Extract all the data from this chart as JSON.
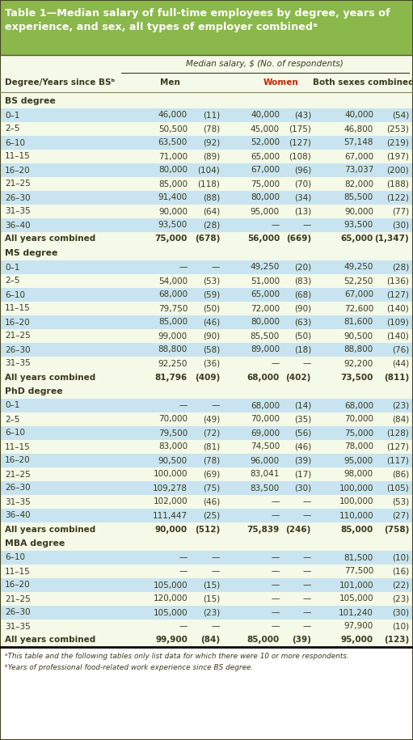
{
  "title_line1": "Table 1—Median salary of full-time employees by degree, years of",
  "title_line2": "experience, and sex, all types of employer combinedᵃ",
  "header_bg": "#8ab84a",
  "light_yellow": "#f5f9e8",
  "light_blue": "#c8e4f0",
  "dark_text": "#3a3a1e",
  "red_text": "#cc2200",
  "footnote_a": "ᵃThis table and the following tables only list data for which there were 10 or more respondents.",
  "footnote_b": "ᵇYears of professional food-related work experience since BS degree.",
  "sections": [
    {
      "name": "BS degree",
      "rows": [
        {
          "label": "0–1",
          "men_sal": "46,000",
          "men_n": "(11)",
          "wom_sal": "40,000",
          "wom_n": "(43)",
          "both_sal": "40,000",
          "both_n": "(54)",
          "bold": false
        },
        {
          "label": "2–5",
          "men_sal": "50,500",
          "men_n": "(78)",
          "wom_sal": "45,000",
          "wom_n": "(175)",
          "both_sal": "46,800",
          "both_n": "(253)",
          "bold": false
        },
        {
          "label": "6–10",
          "men_sal": "63,500",
          "men_n": "(92)",
          "wom_sal": "52,000",
          "wom_n": "(127)",
          "both_sal": "57,148",
          "both_n": "(219)",
          "bold": false
        },
        {
          "label": "11–15",
          "men_sal": "71,000",
          "men_n": "(89)",
          "wom_sal": "65,000",
          "wom_n": "(108)",
          "both_sal": "67,000",
          "both_n": "(197)",
          "bold": false
        },
        {
          "label": "16–20",
          "men_sal": "80,000",
          "men_n": "(104)",
          "wom_sal": "67,000",
          "wom_n": "(96)",
          "both_sal": "73,037",
          "both_n": "(200)",
          "bold": false
        },
        {
          "label": "21–25",
          "men_sal": "85,000",
          "men_n": "(118)",
          "wom_sal": "75,000",
          "wom_n": "(70)",
          "both_sal": "82,000",
          "both_n": "(188)",
          "bold": false
        },
        {
          "label": "26–30",
          "men_sal": "91,400",
          "men_n": "(88)",
          "wom_sal": "80,000",
          "wom_n": "(34)",
          "both_sal": "85,500",
          "both_n": "(122)",
          "bold": false
        },
        {
          "label": "31–35",
          "men_sal": "90,000",
          "men_n": "(64)",
          "wom_sal": "95,000",
          "wom_n": "(13)",
          "both_sal": "90,000",
          "both_n": "(77)",
          "bold": false
        },
        {
          "label": "36–40",
          "men_sal": "93,500",
          "men_n": "(28)",
          "wom_sal": "—",
          "wom_n": "—",
          "both_sal": "93,500",
          "both_n": "(30)",
          "bold": false
        },
        {
          "label": "All years combined",
          "men_sal": "75,000",
          "men_n": "(678)",
          "wom_sal": "56,000",
          "wom_n": "(669)",
          "both_sal": "65,000",
          "both_n": "(1,347)",
          "bold": true
        }
      ]
    },
    {
      "name": "MS degree",
      "rows": [
        {
          "label": "0–1",
          "men_sal": "—",
          "men_n": "—",
          "wom_sal": "49,250",
          "wom_n": "(20)",
          "both_sal": "49,250",
          "both_n": "(28)",
          "bold": false
        },
        {
          "label": "2–5",
          "men_sal": "54,000",
          "men_n": "(53)",
          "wom_sal": "51,000",
          "wom_n": "(83)",
          "both_sal": "52,250",
          "both_n": "(136)",
          "bold": false
        },
        {
          "label": "6–10",
          "men_sal": "68,000",
          "men_n": "(59)",
          "wom_sal": "65,000",
          "wom_n": "(68)",
          "both_sal": "67,000",
          "both_n": "(127)",
          "bold": false
        },
        {
          "label": "11–15",
          "men_sal": "79,750",
          "men_n": "(50)",
          "wom_sal": "72,000",
          "wom_n": "(90)",
          "both_sal": "72,600",
          "both_n": "(140)",
          "bold": false
        },
        {
          "label": "16–20",
          "men_sal": "85,000",
          "men_n": "(46)",
          "wom_sal": "80,000",
          "wom_n": "(63)",
          "both_sal": "81,600",
          "both_n": "(109)",
          "bold": false
        },
        {
          "label": "21–25",
          "men_sal": "99,000",
          "men_n": "(90)",
          "wom_sal": "85,500",
          "wom_n": "(50)",
          "both_sal": "90,500",
          "both_n": "(140)",
          "bold": false
        },
        {
          "label": "26–30",
          "men_sal": "88,800",
          "men_n": "(58)",
          "wom_sal": "89,000",
          "wom_n": "(18)",
          "both_sal": "88,800",
          "both_n": "(76)",
          "bold": false
        },
        {
          "label": "31–35",
          "men_sal": "92,250",
          "men_n": "(36)",
          "wom_sal": "—",
          "wom_n": "—",
          "both_sal": "92,200",
          "both_n": "(44)",
          "bold": false
        },
        {
          "label": "All years combined",
          "men_sal": "81,796",
          "men_n": "(409)",
          "wom_sal": "68,000",
          "wom_n": "(402)",
          "both_sal": "73,500",
          "both_n": "(811)",
          "bold": true
        }
      ]
    },
    {
      "name": "PhD degree",
      "rows": [
        {
          "label": "0–1",
          "men_sal": "—",
          "men_n": "—",
          "wom_sal": "68,000",
          "wom_n": "(14)",
          "both_sal": "68,000",
          "both_n": "(23)",
          "bold": false
        },
        {
          "label": "2–5",
          "men_sal": "70,000",
          "men_n": "(49)",
          "wom_sal": "70,000",
          "wom_n": "(35)",
          "both_sal": "70,000",
          "both_n": "(84)",
          "bold": false
        },
        {
          "label": "6–10",
          "men_sal": "79,500",
          "men_n": "(72)",
          "wom_sal": "69,000",
          "wom_n": "(56)",
          "both_sal": "75,000",
          "both_n": "(128)",
          "bold": false
        },
        {
          "label": "11–15",
          "men_sal": "83,000",
          "men_n": "(81)",
          "wom_sal": "74,500",
          "wom_n": "(46)",
          "both_sal": "78,000",
          "both_n": "(127)",
          "bold": false
        },
        {
          "label": "16–20",
          "men_sal": "90,500",
          "men_n": "(78)",
          "wom_sal": "96,000",
          "wom_n": "(39)",
          "both_sal": "95,000",
          "both_n": "(117)",
          "bold": false
        },
        {
          "label": "21–25",
          "men_sal": "100,000",
          "men_n": "(69)",
          "wom_sal": "83,041",
          "wom_n": "(17)",
          "both_sal": "98,000",
          "both_n": "(86)",
          "bold": false
        },
        {
          "label": "26–30",
          "men_sal": "109,278",
          "men_n": "(75)",
          "wom_sal": "83,500",
          "wom_n": "(30)",
          "both_sal": "100,000",
          "both_n": "(105)",
          "bold": false
        },
        {
          "label": "31–35",
          "men_sal": "102,000",
          "men_n": "(46)",
          "wom_sal": "—",
          "wom_n": "—",
          "both_sal": "100,000",
          "both_n": "(53)",
          "bold": false
        },
        {
          "label": "36–40",
          "men_sal": "111,447",
          "men_n": "(25)",
          "wom_sal": "—",
          "wom_n": "—",
          "both_sal": "110,000",
          "both_n": "(27)",
          "bold": false
        },
        {
          "label": "All years combined",
          "men_sal": "90,000",
          "men_n": "(512)",
          "wom_sal": "75,839",
          "wom_n": "(246)",
          "both_sal": "85,000",
          "both_n": "(758)",
          "bold": true
        }
      ]
    },
    {
      "name": "MBA degree",
      "rows": [
        {
          "label": "6–10",
          "men_sal": "—",
          "men_n": "—",
          "wom_sal": "—",
          "wom_n": "—",
          "both_sal": "81,500",
          "both_n": "(10)",
          "bold": false
        },
        {
          "label": "11–15",
          "men_sal": "—",
          "men_n": "—",
          "wom_sal": "—",
          "wom_n": "—",
          "both_sal": "77,500",
          "both_n": "(16)",
          "bold": false
        },
        {
          "label": "16–20",
          "men_sal": "105,000",
          "men_n": "(15)",
          "wom_sal": "—",
          "wom_n": "—",
          "both_sal": "101,000",
          "both_n": "(22)",
          "bold": false
        },
        {
          "label": "21–25",
          "men_sal": "120,000",
          "men_n": "(15)",
          "wom_sal": "—",
          "wom_n": "—",
          "both_sal": "105,000",
          "both_n": "(23)",
          "bold": false
        },
        {
          "label": "26–30",
          "men_sal": "105,000",
          "men_n": "(23)",
          "wom_sal": "—",
          "wom_n": "—",
          "both_sal": "101,240",
          "both_n": "(30)",
          "bold": false
        },
        {
          "label": "31–35",
          "men_sal": "—",
          "men_n": "—",
          "wom_sal": "—",
          "wom_n": "—",
          "both_sal": "97,900",
          "both_n": "(10)",
          "bold": false
        },
        {
          "label": "All years combined",
          "men_sal": "99,900",
          "men_n": "(84)",
          "wom_sal": "85,000",
          "wom_n": "(39)",
          "both_sal": "95,000",
          "both_n": "(123)",
          "bold": true
        }
      ]
    }
  ]
}
